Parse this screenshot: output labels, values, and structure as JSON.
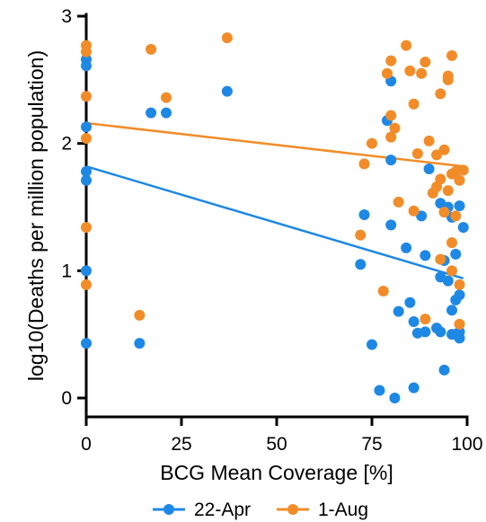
{
  "chart_data": {
    "type": "scatter",
    "xlabel": "BCG Mean Coverage [%]",
    "ylabel": "log10(Deaths per million population)",
    "xlim": [
      0,
      100
    ],
    "ylim": [
      0,
      3
    ],
    "xticks": [
      0,
      25,
      50,
      75,
      100
    ],
    "yticks": [
      0,
      1,
      2,
      3
    ],
    "legend_position": "bottom",
    "series": [
      {
        "name": "22-Apr",
        "color": "#1e88e5",
        "points": [
          [
            0,
            2.66
          ],
          [
            0,
            2.61
          ],
          [
            0,
            2.13
          ],
          [
            0,
            1.78
          ],
          [
            0,
            1.71
          ],
          [
            0,
            1.0
          ],
          [
            0,
            0.43
          ],
          [
            14,
            0.43
          ],
          [
            17,
            2.24
          ],
          [
            21,
            2.24
          ],
          [
            37,
            2.41
          ],
          [
            72,
            1.05
          ],
          [
            73,
            1.44
          ],
          [
            75,
            0.42
          ],
          [
            77,
            0.06
          ],
          [
            79,
            2.18
          ],
          [
            80,
            2.49
          ],
          [
            80,
            1.87
          ],
          [
            80,
            1.36
          ],
          [
            81,
            0.0
          ],
          [
            82,
            0.68
          ],
          [
            84,
            1.18
          ],
          [
            85,
            0.75
          ],
          [
            86,
            0.08
          ],
          [
            86,
            0.6
          ],
          [
            87,
            0.51
          ],
          [
            88,
            1.43
          ],
          [
            89,
            0.52
          ],
          [
            89,
            1.12
          ],
          [
            90,
            1.8
          ],
          [
            92,
            0.55
          ],
          [
            93,
            1.53
          ],
          [
            93,
            0.95
          ],
          [
            93,
            0.52
          ],
          [
            94,
            0.22
          ],
          [
            94,
            1.08
          ],
          [
            95,
            1.5
          ],
          [
            95,
            0.92
          ],
          [
            96,
            1.42
          ],
          [
            96,
            0.69
          ],
          [
            96,
            0.5
          ],
          [
            97,
            1.13
          ],
          [
            97,
            0.77
          ],
          [
            97,
            0.5
          ],
          [
            98,
            1.51
          ],
          [
            98,
            0.81
          ],
          [
            98,
            0.52
          ],
          [
            98,
            0.47
          ],
          [
            99,
            1.34
          ]
        ],
        "trend": {
          "x": [
            0,
            99
          ],
          "y": [
            1.82,
            0.94
          ]
        }
      },
      {
        "name": "1-Aug",
        "color": "#f28c28",
        "points": [
          [
            0,
            2.77
          ],
          [
            0,
            2.72
          ],
          [
            0,
            2.37
          ],
          [
            0,
            2.04
          ],
          [
            0,
            1.34
          ],
          [
            0,
            0.89
          ],
          [
            14,
            0.65
          ],
          [
            17,
            2.74
          ],
          [
            21,
            2.36
          ],
          [
            37,
            2.83
          ],
          [
            72,
            1.28
          ],
          [
            73,
            1.84
          ],
          [
            75,
            2.0
          ],
          [
            78,
            0.84
          ],
          [
            79,
            2.55
          ],
          [
            80,
            2.65
          ],
          [
            80,
            2.22
          ],
          [
            80,
            2.05
          ],
          [
            81,
            2.12
          ],
          [
            82,
            1.54
          ],
          [
            84,
            2.77
          ],
          [
            85,
            2.57
          ],
          [
            86,
            2.31
          ],
          [
            86,
            1.47
          ],
          [
            87,
            1.92
          ],
          [
            88,
            2.55
          ],
          [
            89,
            0.62
          ],
          [
            89,
            2.64
          ],
          [
            90,
            2.02
          ],
          [
            91,
            1.61
          ],
          [
            92,
            1.66
          ],
          [
            92,
            1.91
          ],
          [
            93,
            2.39
          ],
          [
            93,
            1.72
          ],
          [
            94,
            1.95
          ],
          [
            94,
            1.46
          ],
          [
            95,
            2.53
          ],
          [
            95,
            2.5
          ],
          [
            96,
            2.69
          ],
          [
            96,
            1.76
          ],
          [
            96,
            1.22
          ],
          [
            96,
            1.0
          ],
          [
            97,
            1.78
          ],
          [
            97,
            1.43
          ],
          [
            98,
            1.71
          ],
          [
            98,
            0.89
          ],
          [
            98,
            0.58
          ],
          [
            99,
            1.79
          ],
          [
            93,
            1.09
          ],
          [
            95,
            1.63
          ]
        ],
        "trend": {
          "x": [
            0,
            99
          ],
          "y": [
            2.16,
            1.82
          ]
        }
      }
    ]
  }
}
